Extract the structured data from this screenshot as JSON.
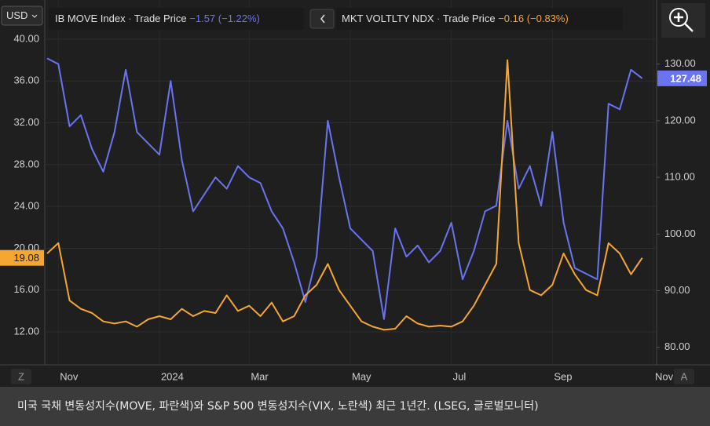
{
  "chart_data": {
    "type": "line",
    "currency": "USD",
    "categories": [
      null,
      "Nov",
      null,
      null,
      null,
      null,
      null,
      null,
      null,
      null,
      "2024",
      null,
      null,
      null,
      null,
      null,
      null,
      null,
      "Mar",
      null,
      null,
      null,
      null,
      null,
      null,
      null,
      null,
      "May",
      null,
      null,
      null,
      null,
      null,
      null,
      null,
      null,
      "Jul",
      null,
      null,
      null,
      null,
      null,
      null,
      null,
      null,
      "Sep",
      null,
      null,
      null,
      null,
      null,
      null,
      null,
      null,
      "Nov"
    ],
    "series": [
      {
        "name": "IB MOVE Index",
        "price_label": "Trade Price",
        "change": "−1.57 (−1.22%)",
        "color": "#6a73f2",
        "axis": "y2",
        "values": [
          131,
          130,
          119,
          121,
          115,
          111,
          118,
          129,
          118,
          116,
          114,
          127,
          113,
          104,
          107,
          110,
          108,
          112,
          110,
          109,
          104,
          101,
          95,
          88,
          96,
          120,
          110,
          101,
          99,
          97,
          85,
          101,
          96,
          98,
          95,
          97,
          102,
          92,
          97,
          104,
          105,
          120,
          108,
          112,
          105,
          118,
          102,
          94,
          93,
          92,
          123,
          122,
          129,
          127.48,
          null
        ]
      },
      {
        "name": "MKT VOLTLTY NDX",
        "price_label": "Trade Price",
        "change": "−0.16 (−0.83%)",
        "color": "#f5a733",
        "values": [
          19.5,
          20.5,
          15,
          14.2,
          13.8,
          13,
          12.8,
          13,
          12.5,
          13.2,
          13.5,
          13.2,
          14.2,
          13.5,
          14,
          13.8,
          15.5,
          14,
          14.5,
          13.5,
          14.8,
          13,
          13.5,
          15.5,
          16.5,
          18.5,
          16,
          14.5,
          13,
          12.5,
          12.2,
          12.3,
          13.5,
          12.8,
          12.5,
          12.6,
          12.5,
          13,
          14.5,
          16.5,
          18.5,
          38,
          20.5,
          16,
          15.5,
          16.5,
          19.5,
          17.5,
          16,
          15.5,
          20.5,
          19.5,
          17.5,
          19.08,
          null
        ]
      }
    ],
    "ylim": [
      9,
      43.15
    ],
    "yticks": [
      {
        "value": 12,
        "label": "12.00"
      },
      {
        "value": 16,
        "label": "16.00"
      },
      {
        "value": 20,
        "label": "20.00"
      },
      {
        "value": 24,
        "label": "24.00"
      },
      {
        "value": 28,
        "label": "28.00"
      },
      {
        "value": 32,
        "label": "32.00"
      },
      {
        "value": 36,
        "label": "36.00"
      },
      {
        "value": 40,
        "label": "40.00"
      }
    ],
    "y2lim": [
      77.2,
      140.2
    ],
    "y2ticks": [
      {
        "value": 80,
        "label": "80.00"
      },
      {
        "value": 90,
        "label": "90.00"
      },
      {
        "value": 100,
        "label": "100.00"
      },
      {
        "value": 110,
        "label": "110.00"
      },
      {
        "value": 120,
        "label": "120.00"
      },
      {
        "value": 130,
        "label": "130.00"
      }
    ],
    "grid": true,
    "left_button": "Z",
    "right_button": "A"
  },
  "caption": "미국 국채 변동성지수(MOVE, 파란색)와 S&P 500 변동성지수(VIX, 노란색) 최근 1년간. (LSEG, 글로벌모니터)"
}
